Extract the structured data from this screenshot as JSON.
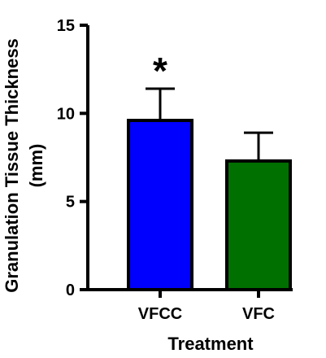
{
  "chart_data": {
    "type": "bar",
    "categories": [
      "VFCC",
      "VFC"
    ],
    "values": [
      9.6,
      7.3
    ],
    "errors": [
      1.8,
      1.6
    ],
    "colors": [
      "#0000ff",
      "#007000"
    ],
    "xlabel": "Treatment",
    "ylabel": [
      "Granulation Tissue Thickness",
      "(mm)"
    ],
    "ylim": [
      0,
      15
    ],
    "yticks": [
      0,
      5,
      10,
      15
    ],
    "annotations": [
      {
        "category": "VFCC",
        "text": "*"
      }
    ],
    "grid": false,
    "legend": "none"
  }
}
